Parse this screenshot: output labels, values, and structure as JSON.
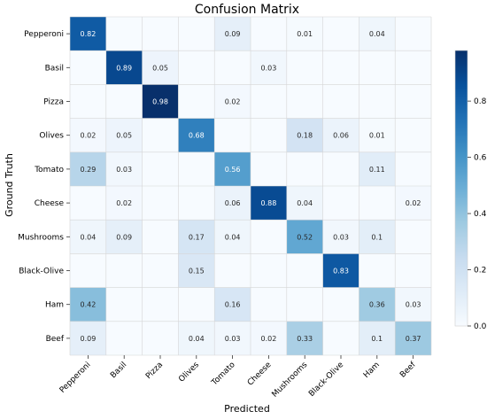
{
  "chart_data": {
    "type": "heatmap",
    "title": "Confusion Matrix",
    "xlabel": "Predicted",
    "ylabel": "Ground Truth",
    "x_categories": [
      "Pepperoni",
      "Basil",
      "Pizza",
      "Olives",
      "Tomato",
      "Cheese",
      "Mushrooms",
      "Black-Olive",
      "Ham",
      "Beef"
    ],
    "y_categories": [
      "Pepperoni",
      "Basil",
      "Pizza",
      "Olives",
      "Tomato",
      "Cheese",
      "Mushrooms",
      "Black-Olive",
      "Ham",
      "Beef"
    ],
    "values": [
      [
        0.82,
        null,
        null,
        null,
        0.09,
        null,
        0.01,
        null,
        0.04,
        null
      ],
      [
        null,
        0.89,
        0.05,
        null,
        null,
        0.03,
        null,
        null,
        null,
        null
      ],
      [
        null,
        null,
        0.98,
        null,
        0.02,
        null,
        null,
        null,
        null,
        null
      ],
      [
        0.02,
        0.05,
        null,
        0.68,
        null,
        null,
        0.18,
        0.06,
        0.01,
        null
      ],
      [
        0.29,
        0.03,
        null,
        null,
        0.56,
        null,
        null,
        null,
        0.11,
        null
      ],
      [
        null,
        0.02,
        null,
        null,
        0.06,
        0.88,
        0.04,
        null,
        null,
        0.02
      ],
      [
        0.04,
        0.09,
        null,
        0.17,
        0.04,
        null,
        0.52,
        0.03,
        0.1,
        null
      ],
      [
        null,
        null,
        null,
        0.15,
        null,
        null,
        null,
        0.83,
        null,
        null
      ],
      [
        0.42,
        null,
        null,
        null,
        0.16,
        null,
        null,
        null,
        0.36,
        0.03
      ],
      [
        0.09,
        null,
        null,
        0.04,
        0.03,
        0.02,
        0.33,
        null,
        0.1,
        0.37
      ]
    ],
    "value_labels": [
      [
        "0.82",
        "",
        "",
        "",
        "0.09",
        "",
        "0.01",
        "",
        "0.04",
        ""
      ],
      [
        "",
        "0.89",
        "0.05",
        "",
        "",
        "0.03",
        "",
        "",
        "",
        ""
      ],
      [
        "",
        "",
        "0.98",
        "",
        "0.02",
        "",
        "",
        "",
        "",
        ""
      ],
      [
        "0.02",
        "0.05",
        "",
        "0.68",
        "",
        "",
        "0.18",
        "0.06",
        "0.01",
        ""
      ],
      [
        "0.29",
        "0.03",
        "",
        "",
        "0.56",
        "",
        "",
        "",
        "0.11",
        ""
      ],
      [
        "",
        "0.02",
        "",
        "",
        "0.06",
        "0.88",
        "0.04",
        "",
        "",
        "0.02"
      ],
      [
        "0.04",
        "0.09",
        "",
        "0.17",
        "0.04",
        "",
        "0.52",
        "0.03",
        "0.1",
        ""
      ],
      [
        "",
        "",
        "",
        "0.15",
        "",
        "",
        "",
        "0.83",
        "",
        ""
      ],
      [
        "0.42",
        "",
        "",
        "",
        "0.16",
        "",
        "",
        "",
        "0.36",
        "0.03"
      ],
      [
        "0.09",
        "",
        "",
        "0.04",
        "0.03",
        "0.02",
        "0.33",
        "",
        "0.1",
        "0.37"
      ]
    ],
    "colorbar": {
      "range": [
        0,
        0.98
      ],
      "ticks": [
        "0.0",
        "0.2",
        "0.4",
        "0.6",
        "0.8"
      ],
      "tick_values": [
        0,
        0.2,
        0.4,
        0.6,
        0.8
      ]
    },
    "colormap": "Blues",
    "colormap_stops": [
      "#f7fbff",
      "#deebf7",
      "#c6dbef",
      "#9ecae1",
      "#6baed6",
      "#4292c6",
      "#2171b5",
      "#08519c",
      "#08306b"
    ],
    "grid": true,
    "grid_color": "#d6d6d6"
  }
}
